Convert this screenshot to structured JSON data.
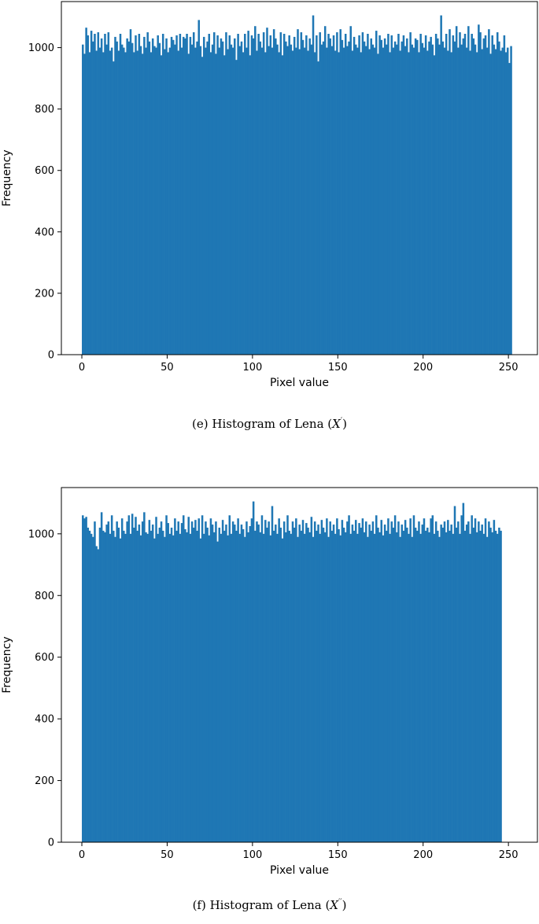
{
  "chart_data": [
    {
      "type": "bar",
      "subplot": "e",
      "caption_prefix": "(e) Histogram of Lena (",
      "caption_var": "X",
      "caption_sup": "′",
      "caption_suffix": ")",
      "xlabel": "Pixel value",
      "ylabel": "Frequency",
      "xlim": [
        -12,
        267
      ],
      "ylim": [
        0,
        1150
      ],
      "xticks": [
        0,
        50,
        100,
        150,
        200,
        250
      ],
      "yticks": [
        0,
        200,
        400,
        600,
        800,
        1000
      ],
      "bar_color": "#1f77b4",
      "bin_start": 0,
      "bin_width": 1,
      "values": [
        1010,
        980,
        1065,
        1040,
        985,
        1055,
        1020,
        1045,
        990,
        1050,
        1000,
        1030,
        985,
        1045,
        1010,
        1050,
        990,
        1000,
        955,
        1035,
        1020,
        990,
        1045,
        1010,
        1000,
        985,
        1030,
        1020,
        1060,
        1015,
        985,
        1040,
        990,
        1045,
        1005,
        980,
        1035,
        1000,
        1050,
        1020,
        985,
        1030,
        1005,
        1000,
        1040,
        1015,
        975,
        1045,
        995,
        1030,
        985,
        1000,
        1035,
        1025,
        1010,
        1040,
        990,
        1045,
        1000,
        1035,
        1030,
        1045,
        980,
        1035,
        1010,
        1050,
        1000,
        1020,
        1090,
        1005,
        970,
        1035,
        1000,
        1020,
        1045,
        985,
        1010,
        1050,
        980,
        1040,
        1000,
        1030,
        1020,
        975,
        1050,
        995,
        1040,
        1010,
        1000,
        1030,
        960,
        1045,
        1005,
        1020,
        985,
        1045,
        1000,
        1055,
        975,
        1040,
        1030,
        1070,
        990,
        1045,
        1020,
        1000,
        1050,
        985,
        1065,
        1005,
        1040,
        1000,
        1060,
        1030,
        1010,
        985,
        1050,
        975,
        1045,
        1020,
        1005,
        1040,
        1010,
        990,
        1035,
        1000,
        1060,
        995,
        1050,
        1025,
        1000,
        1040,
        990,
        1030,
        1010,
        1105,
        985,
        1040,
        955,
        1050,
        1010,
        1020,
        1070,
        1000,
        1045,
        1030,
        1005,
        1040,
        990,
        1050,
        985,
        1060,
        1025,
        1000,
        1045,
        1005,
        1020,
        1070,
        990,
        1035,
        1010,
        1000,
        1040,
        985,
        1050,
        1020,
        1005,
        1045,
        995,
        1030,
        1010,
        1000,
        1055,
        980,
        1040,
        1025,
        1000,
        1030,
        1010,
        1045,
        985,
        1040,
        1000,
        1020,
        1010,
        1045,
        990,
        1020,
        1040,
        1005,
        1030,
        985,
        1050,
        1010,
        1000,
        1030,
        1025,
        985,
        1045,
        1015,
        1000,
        1040,
        990,
        1020,
        1035,
        1010,
        975,
        1045,
        1030,
        1010,
        1105,
        1020,
        1000,
        1045,
        990,
        1060,
        985,
        1040,
        1020,
        1070,
        1000,
        1050,
        1010,
        1030,
        1045,
        1000,
        1070,
        990,
        1045,
        1030,
        1010,
        985,
        1075,
        1050,
        995,
        1030,
        1040,
        1000,
        1060,
        980,
        1040,
        1010,
        995,
        1050,
        1020,
        990,
        1000,
        1040,
        985,
        1000,
        950,
        1005
      ]
    },
    {
      "type": "bar",
      "subplot": "f",
      "caption_prefix": "(f) Histogram of Lena (",
      "caption_var": "X",
      "caption_sup": "′′",
      "caption_suffix": ")",
      "xlabel": "Pixel value",
      "ylabel": "Frequency",
      "xlim": [
        -12,
        267
      ],
      "ylim": [
        0,
        1150
      ],
      "xticks": [
        0,
        50,
        100,
        150,
        200,
        250
      ],
      "yticks": [
        0,
        200,
        400,
        600,
        800,
        1000
      ],
      "bar_color": "#1f77b4",
      "bin_start": 0,
      "bin_width": 1,
      "values": [
        1060,
        1050,
        1055,
        1020,
        1010,
        1000,
        990,
        1040,
        960,
        950,
        1020,
        1070,
        1010,
        1005,
        1030,
        1040,
        1000,
        1060,
        1010,
        990,
        1040,
        1020,
        985,
        1050,
        1010,
        1000,
        1040,
        1060,
        1000,
        1065,
        1020,
        1055,
        1010,
        1030,
        995,
        1040,
        1070,
        1005,
        1000,
        1045,
        1010,
        1030,
        985,
        1055,
        1000,
        1020,
        1040,
        1010,
        990,
        1060,
        1035,
        1000,
        1020,
        995,
        1050,
        1010,
        1040,
        1000,
        1035,
        1060,
        1015,
        1005,
        1055,
        1000,
        1040,
        1020,
        1045,
        1010,
        1050,
        985,
        1060,
        1000,
        1040,
        1020,
        995,
        1050,
        1030,
        1005,
        1040,
        975,
        1020,
        1000,
        1045,
        1010,
        1030,
        995,
        1060,
        1000,
        1040,
        1030,
        1010,
        1050,
        1000,
        1030,
        1015,
        990,
        1040,
        1005,
        1025,
        1050,
        1105,
        1010,
        1040,
        1030,
        1005,
        1060,
        1000,
        1045,
        1020,
        1040,
        995,
        1090,
        1010,
        1030,
        1000,
        1050,
        1020,
        985,
        1040,
        1005,
        1060,
        1010,
        1000,
        1040,
        1020,
        1050,
        990,
        1030,
        1010,
        1045,
        1000,
        1035,
        1020,
        1005,
        1055,
        990,
        1040,
        1010,
        1030,
        1000,
        1045,
        1020,
        1005,
        1050,
        990,
        1040,
        1010,
        1030,
        1000,
        1050,
        1015,
        995,
        1045,
        1020,
        1005,
        1040,
        1060,
        1000,
        1030,
        1010,
        1045,
        1000,
        1035,
        1020,
        1050,
        1005,
        1040,
        990,
        1030,
        1010,
        1040,
        1000,
        1060,
        1020,
        1005,
        1045,
        995,
        1030,
        1010,
        1050,
        1000,
        1040,
        1020,
        1060,
        1005,
        1040,
        990,
        1030,
        1010,
        1045,
        1020,
        1000,
        1050,
        990,
        1060,
        1020,
        1010,
        1040,
        1000,
        1030,
        1050,
        1010,
        1020,
        1005,
        1050,
        1060,
        1000,
        1040,
        1010,
        990,
        1030,
        1020,
        1040,
        1005,
        1045,
        1010,
        1030,
        1000,
        1090,
        1020,
        1040,
        1000,
        1060,
        1100,
        1010,
        1030,
        1040,
        1000,
        1060,
        1020,
        1050,
        1005,
        1040,
        1010,
        1030,
        1000,
        1050,
        990,
        1040,
        1020,
        1005,
        1045,
        1010,
        1000,
        1020,
        1010
      ]
    }
  ]
}
